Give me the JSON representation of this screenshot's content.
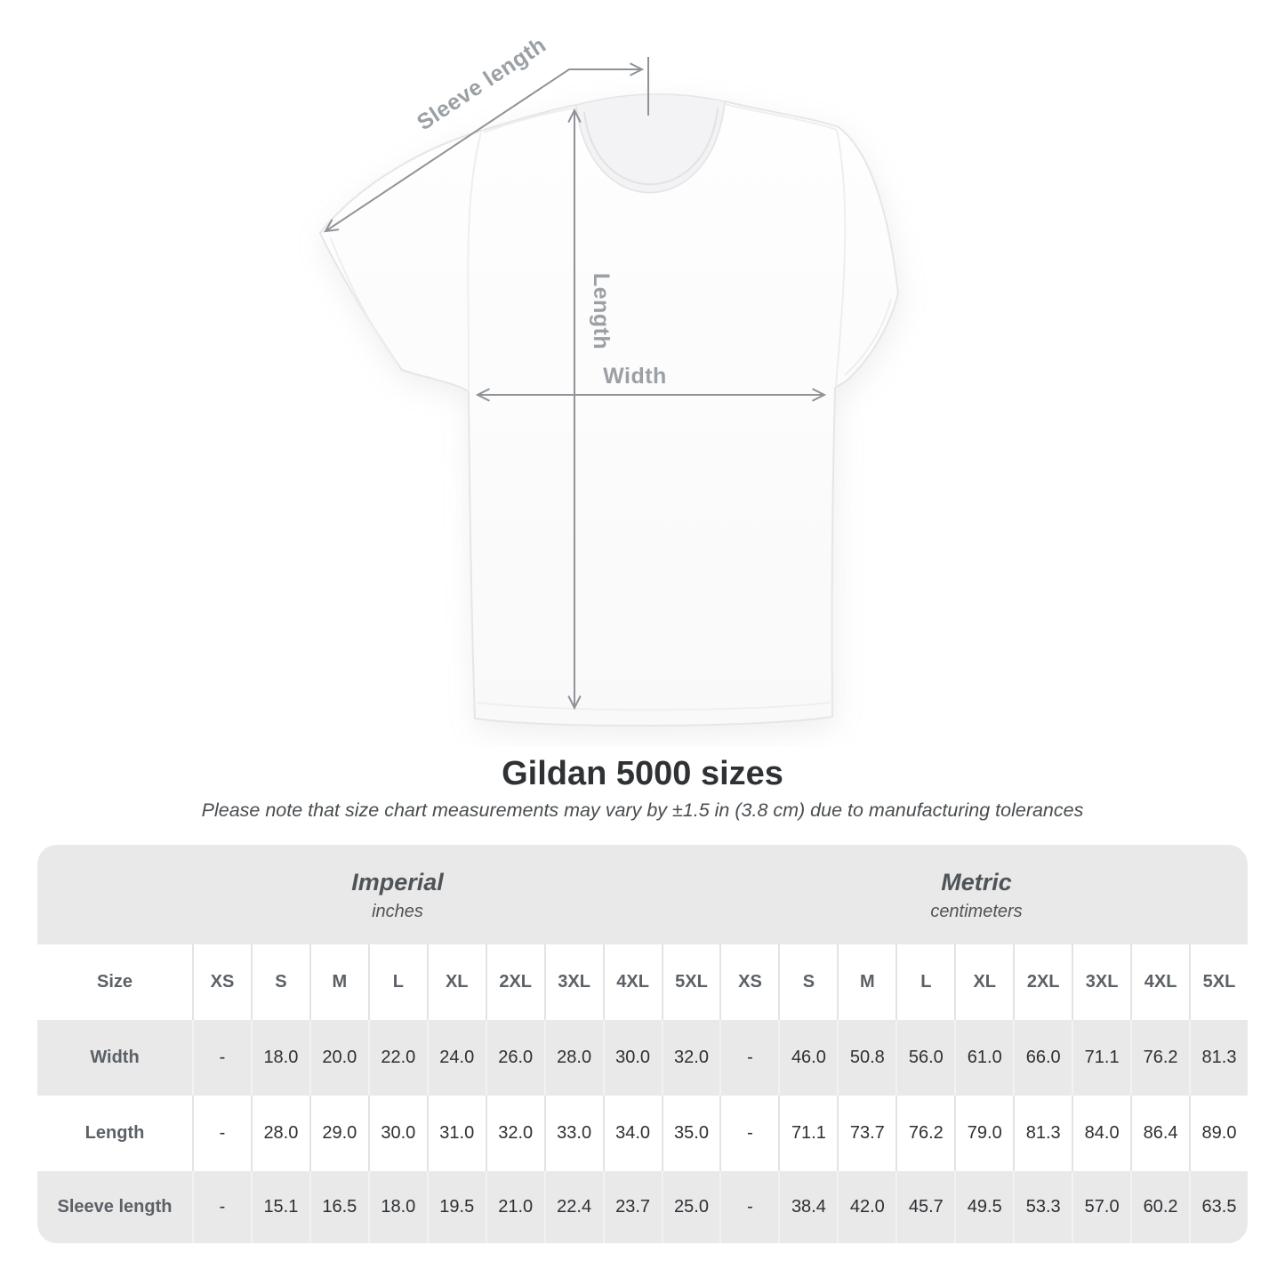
{
  "diagram": {
    "labels": {
      "sleeve_length": "Sleeve length",
      "length": "Length",
      "width": "Width"
    }
  },
  "heading": {
    "title": "Gildan 5000 sizes",
    "subtitle": "Please note that size chart measurements may vary by ±1.5 in (3.8 cm) due to manufacturing tolerances"
  },
  "chart_data": {
    "type": "table",
    "title": "Gildan 5000 sizes",
    "note": "Please note that size chart measurements may vary by ±1.5 in (3.8 cm) due to manufacturing tolerances",
    "size_column_label": "Size",
    "column_groups": [
      {
        "name": "Imperial",
        "unit": "inches",
        "sizes": [
          "XS",
          "S",
          "M",
          "L",
          "XL",
          "2XL",
          "3XL",
          "4XL",
          "5XL"
        ]
      },
      {
        "name": "Metric",
        "unit": "centimeters",
        "sizes": [
          "XS",
          "S",
          "M",
          "L",
          "XL",
          "2XL",
          "3XL",
          "4XL",
          "5XL"
        ]
      }
    ],
    "rows": [
      {
        "label": "Width",
        "imperial": [
          "-",
          "18.0",
          "20.0",
          "22.0",
          "24.0",
          "26.0",
          "28.0",
          "30.0",
          "32.0"
        ],
        "metric": [
          "-",
          "46.0",
          "50.8",
          "56.0",
          "61.0",
          "66.0",
          "71.1",
          "76.2",
          "81.3"
        ]
      },
      {
        "label": "Length",
        "imperial": [
          "-",
          "28.0",
          "29.0",
          "30.0",
          "31.0",
          "32.0",
          "33.0",
          "34.0",
          "35.0"
        ],
        "metric": [
          "-",
          "71.1",
          "73.7",
          "76.2",
          "79.0",
          "81.3",
          "84.0",
          "86.4",
          "89.0"
        ]
      },
      {
        "label": "Sleeve length",
        "imperial": [
          "-",
          "15.1",
          "16.5",
          "18.0",
          "19.5",
          "21.0",
          "22.4",
          "23.7",
          "25.0"
        ],
        "metric": [
          "-",
          "38.4",
          "42.0",
          "45.7",
          "49.5",
          "53.3",
          "57.0",
          "60.2",
          "63.5"
        ]
      }
    ]
  },
  "colors": {
    "band_gray": "#e9e9ea",
    "divider_on_white": "#e3e3e4",
    "divider_on_gray": "#f2f2f4",
    "header_text": "#5c6166",
    "value_text": "#2d3033",
    "measure_line": "#8f9397",
    "measure_label": "#9ba0a4",
    "title_text": "#2f3234"
  }
}
